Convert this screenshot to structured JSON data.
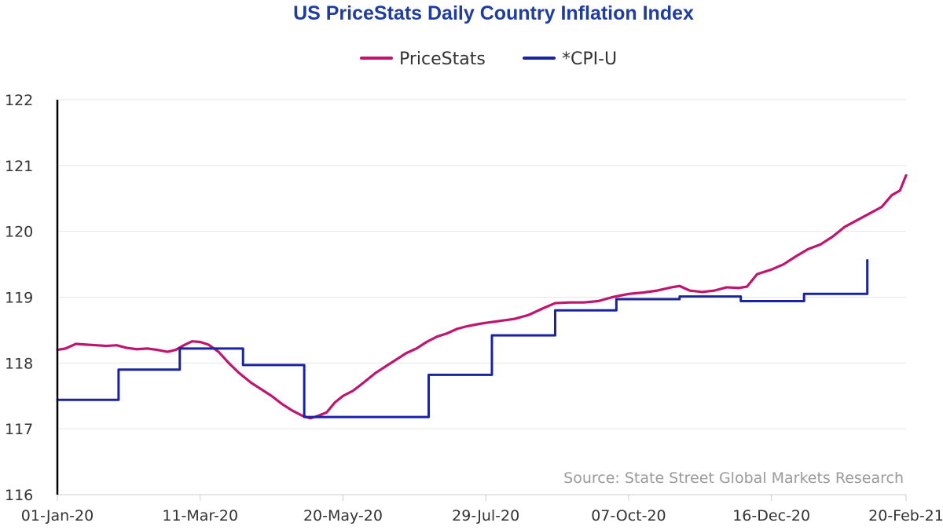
{
  "chart_data": {
    "type": "line",
    "title": "US PriceStats Daily Country Inflation Index",
    "source": "Source: State Street Global Markets Research",
    "x_tick_labels": [
      "01-Jan-20",
      "11-Mar-20",
      "20-May-20",
      "29-Jul-20",
      "07-Oct-20",
      "16-Dec-20",
      "20-Feb-21"
    ],
    "x_tick_dates": [
      "2020-01-01",
      "2020-03-11",
      "2020-05-20",
      "2020-07-29",
      "2020-10-07",
      "2020-12-16",
      "2021-02-20"
    ],
    "xlim": [
      "2020-01-01",
      "2021-02-20"
    ],
    "y_ticks": [
      116,
      117,
      118,
      119,
      120,
      121,
      122
    ],
    "ylim": [
      116,
      122
    ],
    "grid": true,
    "legend_position": "top-center",
    "series": [
      {
        "name": "PriceStats",
        "color": "#c0156e",
        "style": "line",
        "points": [
          [
            "2020-01-01",
            118.2
          ],
          [
            "2020-01-05",
            118.22
          ],
          [
            "2020-01-10",
            118.29
          ],
          [
            "2020-01-15",
            118.28
          ],
          [
            "2020-01-20",
            118.27
          ],
          [
            "2020-01-25",
            118.26
          ],
          [
            "2020-01-30",
            118.27
          ],
          [
            "2020-02-04",
            118.23
          ],
          [
            "2020-02-09",
            118.21
          ],
          [
            "2020-02-14",
            118.22
          ],
          [
            "2020-02-19",
            118.2
          ],
          [
            "2020-02-24",
            118.17
          ],
          [
            "2020-02-28",
            118.2
          ],
          [
            "2020-03-03",
            118.27
          ],
          [
            "2020-03-07",
            118.33
          ],
          [
            "2020-03-11",
            118.32
          ],
          [
            "2020-03-15",
            118.28
          ],
          [
            "2020-03-20",
            118.17
          ],
          [
            "2020-03-25",
            118.0
          ],
          [
            "2020-03-30",
            117.85
          ],
          [
            "2020-04-05",
            117.7
          ],
          [
            "2020-04-10",
            117.6
          ],
          [
            "2020-04-15",
            117.5
          ],
          [
            "2020-04-20",
            117.38
          ],
          [
            "2020-04-25",
            117.28
          ],
          [
            "2020-04-30",
            117.2
          ],
          [
            "2020-05-04",
            117.16
          ],
          [
            "2020-05-08",
            117.2
          ],
          [
            "2020-05-12",
            117.25
          ],
          [
            "2020-05-16",
            117.4
          ],
          [
            "2020-05-20",
            117.5
          ],
          [
            "2020-05-25",
            117.58
          ],
          [
            "2020-05-30",
            117.7
          ],
          [
            "2020-06-05",
            117.85
          ],
          [
            "2020-06-10",
            117.95
          ],
          [
            "2020-06-15",
            118.05
          ],
          [
            "2020-06-20",
            118.15
          ],
          [
            "2020-06-25",
            118.22
          ],
          [
            "2020-06-30",
            118.32
          ],
          [
            "2020-07-05",
            118.4
          ],
          [
            "2020-07-10",
            118.45
          ],
          [
            "2020-07-15",
            118.52
          ],
          [
            "2020-07-20",
            118.56
          ],
          [
            "2020-07-25",
            118.59
          ],
          [
            "2020-07-29",
            118.61
          ],
          [
            "2020-08-05",
            118.64
          ],
          [
            "2020-08-12",
            118.67
          ],
          [
            "2020-08-19",
            118.73
          ],
          [
            "2020-08-26",
            118.83
          ],
          [
            "2020-09-01",
            118.91
          ],
          [
            "2020-09-08",
            118.92
          ],
          [
            "2020-09-15",
            118.92
          ],
          [
            "2020-09-22",
            118.94
          ],
          [
            "2020-09-29",
            119.0
          ],
          [
            "2020-10-07",
            119.05
          ],
          [
            "2020-10-14",
            119.07
          ],
          [
            "2020-10-21",
            119.1
          ],
          [
            "2020-10-28",
            119.15
          ],
          [
            "2020-11-01",
            119.17
          ],
          [
            "2020-11-06",
            119.1
          ],
          [
            "2020-11-12",
            119.08
          ],
          [
            "2020-11-18",
            119.1
          ],
          [
            "2020-11-24",
            119.15
          ],
          [
            "2020-11-30",
            119.14
          ],
          [
            "2020-12-04",
            119.16
          ],
          [
            "2020-12-09",
            119.35
          ],
          [
            "2020-12-16",
            119.42
          ],
          [
            "2020-12-22",
            119.5
          ],
          [
            "2020-12-28",
            119.62
          ],
          [
            "2021-01-03",
            119.73
          ],
          [
            "2021-01-09",
            119.8
          ],
          [
            "2021-01-15",
            119.92
          ],
          [
            "2021-01-21",
            120.07
          ],
          [
            "2021-01-27",
            120.17
          ],
          [
            "2021-02-02",
            120.27
          ],
          [
            "2021-02-08",
            120.37
          ],
          [
            "2021-02-13",
            120.55
          ],
          [
            "2021-02-17",
            120.62
          ],
          [
            "2021-02-20",
            120.85
          ]
        ]
      },
      {
        "name": "*CPI-U",
        "color": "#1a23a0",
        "style": "step",
        "points": [
          [
            "2020-01-01",
            117.44
          ],
          [
            "2020-01-31",
            117.9
          ],
          [
            "2020-03-01",
            118.22
          ],
          [
            "2020-04-01",
            117.97
          ],
          [
            "2020-05-01",
            117.18
          ],
          [
            "2020-06-01",
            117.18
          ],
          [
            "2020-07-01",
            117.82
          ],
          [
            "2020-08-01",
            118.42
          ],
          [
            "2020-09-01",
            118.8
          ],
          [
            "2020-10-01",
            118.97
          ],
          [
            "2020-11-01",
            119.01
          ],
          [
            "2020-12-01",
            118.94
          ],
          [
            "2021-01-01",
            119.05
          ],
          [
            "2021-02-01",
            119.56
          ]
        ],
        "end_date": "2021-02-01"
      }
    ]
  }
}
